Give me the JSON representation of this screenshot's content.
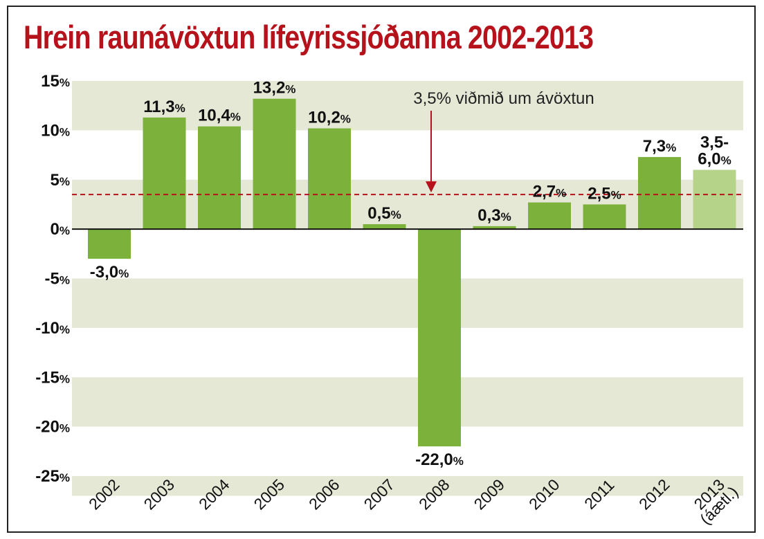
{
  "title": "Hrein raunávöxtun lífeyrissjóðanna 2002-2013",
  "chart_data": {
    "type": "bar",
    "title": "Hrein raunávöxtun lífeyrissjóðanna 2002-2013",
    "categories": [
      "2002",
      "2003",
      "2004",
      "2005",
      "2006",
      "2007",
      "2008",
      "2009",
      "2010",
      "2011",
      "2012",
      "2013"
    ],
    "category_note": {
      "index": 11,
      "text": "(áætl.)"
    },
    "values": [
      -3.0,
      11.3,
      10.4,
      13.2,
      10.2,
      0.5,
      -22.0,
      0.3,
      2.7,
      2.5,
      7.3,
      6.0
    ],
    "data_labels": [
      [
        "-3,0"
      ],
      [
        "11,3"
      ],
      [
        "10,4"
      ],
      [
        "13,2"
      ],
      [
        "10,2"
      ],
      [
        "0,5"
      ],
      [
        "-22,0"
      ],
      [
        "0,3"
      ],
      [
        "2,7"
      ],
      [
        "2,5"
      ],
      [
        "7,3"
      ],
      [
        "3,5-",
        "6,0"
      ]
    ],
    "label_unit": "%",
    "estimate_range": {
      "index": 11,
      "low": 3.5,
      "high": 6.0
    },
    "yticks": [
      15,
      10,
      5,
      0,
      -5,
      -10,
      -15,
      -20,
      -25
    ],
    "ytick_labels": [
      "15",
      "10",
      "5",
      "0",
      "-5",
      "-10",
      "-15",
      "-20",
      "-25"
    ],
    "ylim": [
      -27,
      15.5
    ],
    "grid": "alternating horizontal bands",
    "xlabel": "",
    "ylabel": "",
    "reference_line": {
      "value": 3.5,
      "label": "3,5% viðmið um ávöxtun",
      "style": "dashed"
    },
    "colors": {
      "bar": "#7cb23c",
      "bar_estimate": "#b5d48a",
      "band": "#e6e8d6",
      "reference": "#b5121b",
      "title": "#b5121b"
    }
  }
}
